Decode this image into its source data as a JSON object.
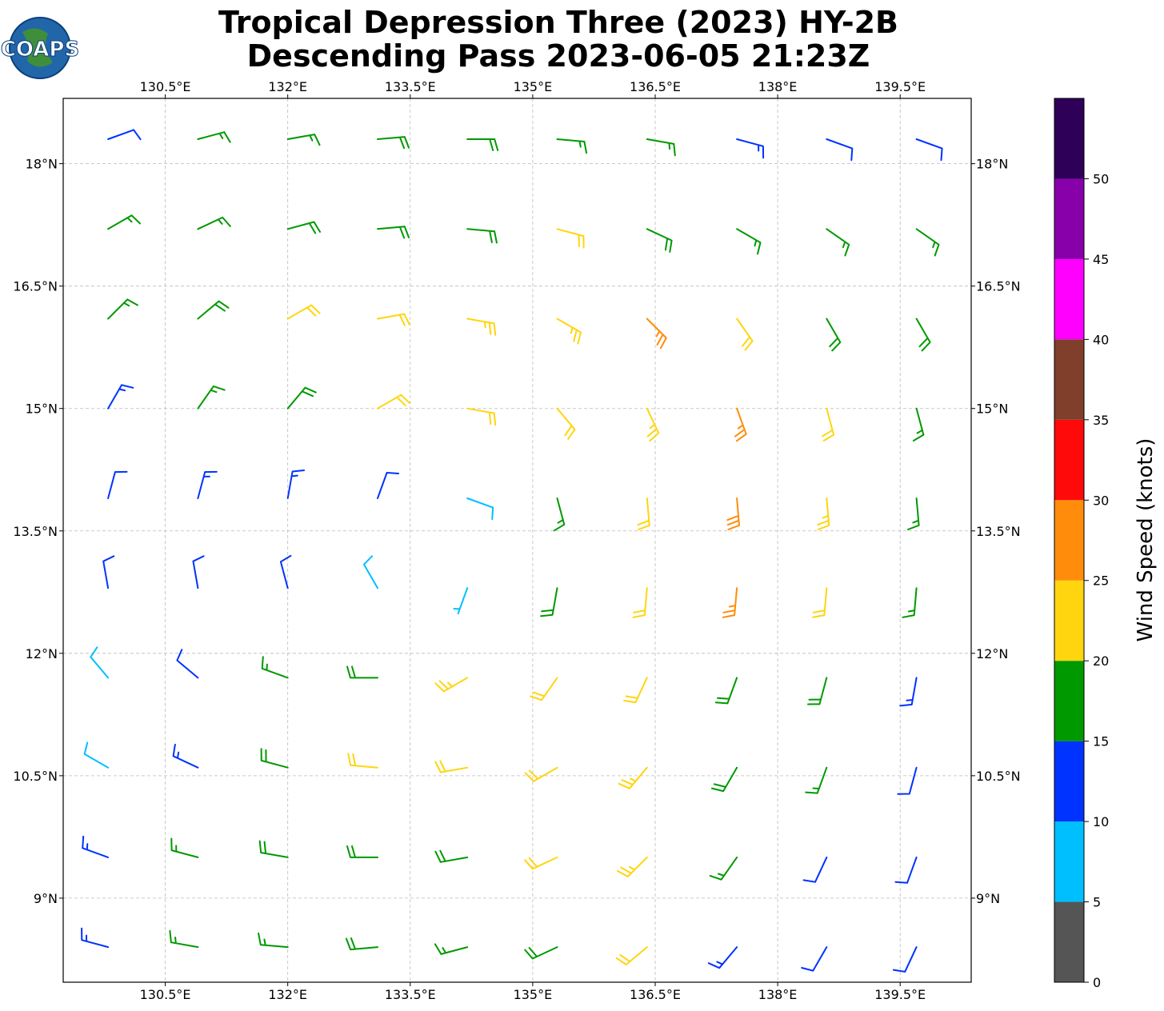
{
  "chart_data": {
    "type": "wind_barbs",
    "title": "Tropical Depression Three (2023) HY-2B",
    "subtitle": "Descending Pass 2023-06-05 21:23Z",
    "logo_text": "COAPS",
    "xlim": [
      129.25,
      140.37
    ],
    "ylim": [
      7.97,
      18.8
    ],
    "xticks": [
      {
        "value": 130.5,
        "label": "130.5°E"
      },
      {
        "value": 132,
        "label": "132°E"
      },
      {
        "value": 133.5,
        "label": "133.5°E"
      },
      {
        "value": 135,
        "label": "135°E"
      },
      {
        "value": 136.5,
        "label": "136.5°E"
      },
      {
        "value": 138,
        "label": "138°E"
      },
      {
        "value": 139.5,
        "label": "139.5°E"
      }
    ],
    "yticks": [
      {
        "value": 9,
        "label": "9°N"
      },
      {
        "value": 10.5,
        "label": "10.5°N"
      },
      {
        "value": 12,
        "label": "12°N"
      },
      {
        "value": 13.5,
        "label": "13.5°N"
      },
      {
        "value": 15,
        "label": "15°N"
      },
      {
        "value": 16.5,
        "label": "16.5°N"
      },
      {
        "value": 18,
        "label": "18°N"
      }
    ],
    "grid": true,
    "barbs": {
      "lons": [
        129.8,
        130.9,
        132.0,
        133.1,
        134.2,
        135.3,
        136.4,
        137.5,
        138.6,
        139.7
      ],
      "lats": [
        18.3,
        17.2,
        16.1,
        15.0,
        13.9,
        12.8,
        11.7,
        10.6,
        9.5,
        8.4
      ],
      "speed": [
        [
          12,
          16,
          17,
          18,
          18,
          17,
          16,
          14,
          12,
          12
        ],
        [
          16,
          17,
          18,
          18,
          19,
          20,
          19,
          17,
          16,
          15
        ],
        [
          17,
          18,
          20,
          22,
          23,
          24,
          25,
          22,
          19,
          18
        ],
        [
          14,
          16,
          18,
          20,
          20,
          21,
          24,
          26,
          21,
          17
        ],
        [
          12,
          13,
          14,
          11,
          9,
          16,
          22,
          28,
          23,
          17
        ],
        [
          11,
          12,
          11,
          8,
          5,
          18,
          22,
          27,
          22,
          16
        ],
        [
          9,
          12,
          15,
          19,
          23,
          22,
          20,
          19,
          18,
          14
        ],
        [
          8,
          14,
          18,
          22,
          22,
          21,
          23,
          18,
          15,
          12
        ],
        [
          13,
          16,
          18,
          19,
          19,
          20,
          24,
          15,
          11,
          12
        ],
        [
          13,
          15,
          17,
          18,
          17,
          19,
          22,
          14,
          10,
          12
        ]
      ],
      "dir": [
        [
          70,
          75,
          80,
          85,
          90,
          95,
          100,
          105,
          110,
          110
        ],
        [
          60,
          65,
          75,
          85,
          95,
          105,
          115,
          120,
          125,
          125
        ],
        [
          45,
          50,
          60,
          80,
          100,
          120,
          135,
          145,
          150,
          150
        ],
        [
          30,
          35,
          40,
          60,
          100,
          140,
          155,
          160,
          165,
          165
        ],
        [
          15,
          15,
          10,
          20,
          110,
          165,
          175,
          175,
          175,
          175
        ],
        [
          350,
          350,
          345,
          330,
          200,
          190,
          185,
          185,
          185,
          185
        ],
        [
          320,
          310,
          290,
          270,
          240,
          215,
          205,
          200,
          195,
          190
        ],
        [
          300,
          295,
          285,
          275,
          260,
          240,
          220,
          210,
          200,
          195
        ],
        [
          290,
          285,
          280,
          270,
          260,
          245,
          225,
          215,
          205,
          200
        ],
        [
          285,
          280,
          275,
          265,
          255,
          245,
          230,
          220,
          210,
          205
        ]
      ]
    },
    "colorbar": {
      "label": "Wind Speed (knots)",
      "bounds": [
        0,
        5,
        10,
        15,
        20,
        25,
        30,
        35,
        40,
        45,
        50,
        55
      ],
      "colors": [
        "#555555",
        "#00bfff",
        "#0033ff",
        "#009900",
        "#ffd50f",
        "#ff8c0a",
        "#ff0a0a",
        "#7f3f2a",
        "#ff00ff",
        "#8800aa",
        "#2e0057"
      ],
      "ticks": [
        0,
        5,
        10,
        15,
        20,
        25,
        30,
        35,
        40,
        45,
        50
      ]
    }
  }
}
